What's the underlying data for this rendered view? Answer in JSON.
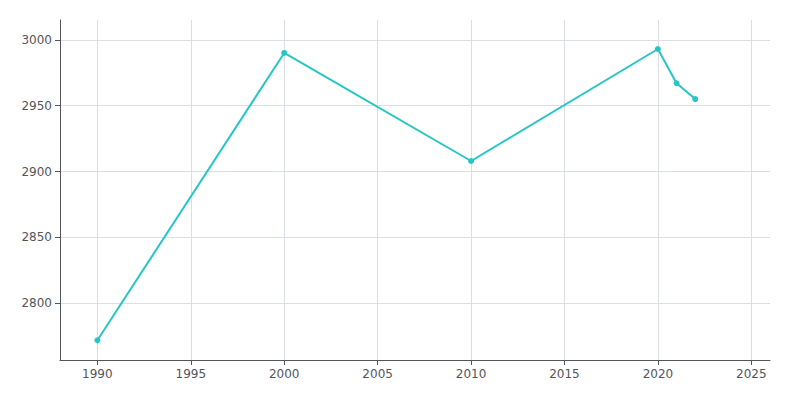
{
  "chart_data": {
    "type": "line",
    "x": [
      1990,
      2000,
      2010,
      2020,
      2021,
      2022
    ],
    "values": [
      2772,
      2990,
      2908,
      2993,
      2967,
      2955
    ],
    "color": "#26C6C6",
    "marker": "circle",
    "xlim": [
      1988,
      2026
    ],
    "xticks": [
      1990,
      1995,
      2000,
      2005,
      2010,
      2015,
      2020,
      2025
    ],
    "ylim": [
      2757,
      3015
    ],
    "yticks": [
      2800,
      2850,
      2900,
      2950,
      3000
    ],
    "grid": true
  }
}
